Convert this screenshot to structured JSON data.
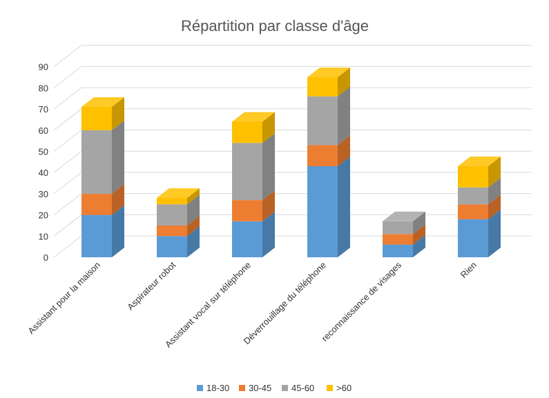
{
  "chart_data": {
    "type": "bar",
    "stacked": true,
    "style": "3d-column",
    "title": "Répartition par classe d'âge",
    "categories": [
      "Assistant pour la maison",
      "Aspirateur robot",
      "Assistant vocal sur téléphone",
      "Déverrouillage du téléphone",
      "reconnaissance de visages",
      "Rien"
    ],
    "series": [
      {
        "name": "18-30",
        "color": "#5B9BD5",
        "values": [
          20,
          10,
          17,
          43,
          6,
          18
        ]
      },
      {
        "name": "30-45",
        "color": "#ED7D31",
        "values": [
          10,
          5,
          10,
          10,
          5,
          7
        ]
      },
      {
        "name": "45-60",
        "color": "#A5A5A5",
        "values": [
          30,
          10,
          27,
          23,
          6,
          8
        ]
      },
      {
        "name": ">60",
        "color": "#FFC000",
        "values": [
          11,
          3,
          10,
          9,
          0,
          10
        ]
      }
    ],
    "yticks": [
      "0",
      "10",
      "20",
      "30",
      "40",
      "50",
      "60",
      "70",
      "80",
      "90"
    ],
    "ylim": [
      0,
      90
    ],
    "grid": true,
    "legend_position": "bottom"
  }
}
